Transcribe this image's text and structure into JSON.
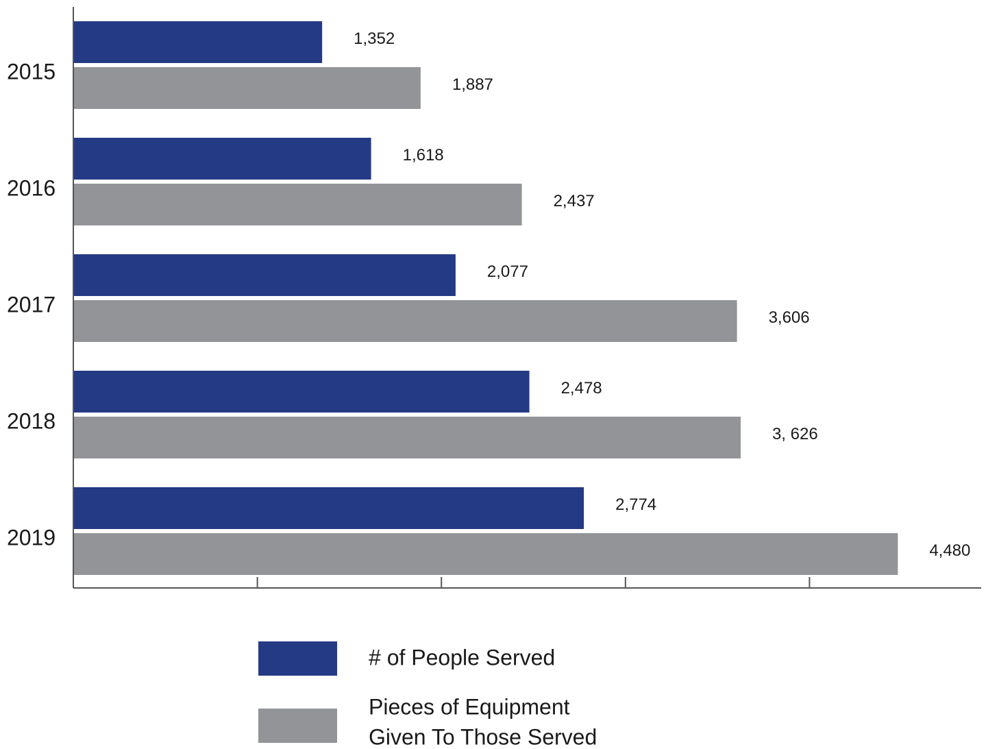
{
  "chart_data": {
    "type": "bar",
    "orientation": "horizontal",
    "categories": [
      "2015",
      "2016",
      "2017",
      "2018",
      "2019"
    ],
    "series": [
      {
        "name": "# of People Served",
        "color": "#253a85",
        "values": [
          1352,
          1618,
          2077,
          2478,
          2774
        ],
        "value_labels": [
          "1,352",
          "1,618",
          "2,077",
          "2,478",
          "2,774"
        ]
      },
      {
        "name": "Pieces of Equipment Given To Those Served",
        "name_lines": [
          "Pieces of Equipment",
          "Given To Those Served"
        ],
        "color": "#929497",
        "values": [
          1887,
          2437,
          3606,
          3626,
          4480
        ],
        "value_labels": [
          "1,887",
          "2,437",
          "3,606",
          "3, 626",
          "4,480"
        ]
      }
    ],
    "xlim": [
      0,
      5000
    ],
    "x_ticks": [
      0,
      1000,
      2000,
      3000,
      4000
    ],
    "grid": false,
    "legend_position": "bottom",
    "title": "",
    "xlabel": "",
    "ylabel": ""
  }
}
